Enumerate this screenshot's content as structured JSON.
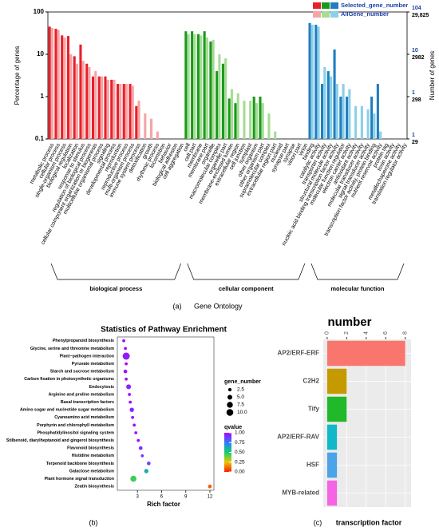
{
  "chart_data": [
    {
      "type": "go_bar",
      "panel": "(a)",
      "caption": "Gene Ontology",
      "ylabel": "Percentage of genes",
      "y2label": "Number of genes",
      "log_scale": true,
      "ylim": [
        0.1,
        100
      ],
      "yticks": [
        0.1,
        1,
        10,
        100
      ],
      "y2labels_selected": [
        "1",
        "1",
        "10",
        "104"
      ],
      "y2labels_all": [
        "29",
        "298",
        "2982",
        "29,825"
      ],
      "series": [
        {
          "name": "Selected_gene_number",
          "colors": [
            "#e8202a",
            "#1a9a1a",
            "#1f7fc0"
          ]
        },
        {
          "name": "AllGene_number",
          "colors": [
            "#f4a6a6",
            "#a6dc96",
            "#8ccfe8"
          ]
        }
      ],
      "groups": [
        {
          "name": "biological process",
          "categories": [
            "metabolic process",
            "cellular process",
            "single-organism process",
            "biological regulation",
            "localization",
            "response to stimulus",
            "regulation of biological process",
            "cellular component organization or biogenesis",
            "multicellular organismal process",
            "signaling",
            "developmental process",
            "reproduction",
            "reproductive process",
            "multi-organism process",
            "immune system process",
            "detoxification",
            "growth",
            "rhythmic process",
            "locomotion",
            "behavior",
            "biological adhesion",
            "cell aggregation"
          ],
          "values": [
            [
              45,
              40,
              28,
              27,
              9,
              17,
              6,
              3,
              3,
              3,
              2.5,
              2,
              2,
              2,
              0.6,
              null,
              null,
              null,
              null,
              null,
              null,
              null
            ],
            [
              42,
              38,
              25,
              10,
              6,
              7,
              5,
              4,
              3,
              2.5,
              2.5,
              2,
              2,
              1.8,
              0.8,
              0.4,
              0.3,
              0.15,
              null,
              null,
              null,
              null
            ]
          ]
        },
        {
          "name": "cellular component",
          "categories": [
            "cell",
            "cell part",
            "membrane",
            "membrane part",
            "organelle",
            "macromolecular complex",
            "organelle part",
            "membrane-enclosed lumen",
            "extracellular region",
            "cell junction",
            "symplast",
            "other organism",
            "other organism part",
            "supramolecular complex",
            "extracellular region part",
            "nucleoid",
            "synapse part",
            "synapse",
            "virion part",
            "virion"
          ],
          "values": [
            [
              35,
              35,
              30,
              35,
              20,
              4,
              6,
              0.9,
              0.7,
              null,
              null,
              1,
              1,
              null,
              null,
              null,
              null,
              null,
              null,
              null
            ],
            [
              30,
              30,
              28,
              25,
              22,
              10,
              8,
              1.5,
              1.2,
              0.8,
              0.8,
              0.7,
              0.7,
              0.4,
              0.15,
              null,
              null,
              null,
              null,
              null
            ]
          ]
        },
        {
          "name": "molecular function",
          "categories": [
            "binding",
            "catalytic activity",
            "transporter activity",
            "structural molecule activity",
            "nucleic acid binding transcription factor activity",
            "molecular function regulator",
            "electron carrier activity",
            "antioxidant activity",
            "molecular transducer activity",
            "signal transducer activity",
            "transcription factor activity, protein binding",
            "nutrient reservoir activity",
            "protein tag",
            "toxin activity",
            "metallochaperone activity",
            "translation regulator activity"
          ],
          "values": [
            [
              55,
              50,
              2,
              4,
              13,
              1,
              1,
              null,
              null,
              null,
              1,
              2,
              null,
              null,
              null,
              null
            ],
            [
              50,
              45,
              5,
              3,
              2,
              2,
              1.5,
              0.6,
              0.6,
              0.5,
              0.4,
              0.15,
              null,
              null,
              null,
              null
            ]
          ]
        }
      ]
    },
    {
      "type": "dot",
      "panel": "(b)",
      "title": "Statistics of Pathway Enrichment",
      "xlabel": "Rich factor",
      "categories": [
        "Phenylpropanoid biosynthesis",
        "Glycine, serine and threonine metabolism",
        "Plant−pathogen interaction",
        "Pyruvate metabolism",
        "Starch and sucrose metabolism",
        "Carbon fixation in photosynthetic organisms",
        "Endocytosis",
        "Arginine and proline metabolism",
        "Basal transcription factors",
        "Amino sugar and nucleotide sugar metabolism",
        "Cyanoamino acid metabolism",
        "Porphyrin and chlorophyll metabolism",
        "Phosphatidylinositol signaling system",
        "Stilbenoid, diarylheptanoid and gingerol biosynthesis",
        "Flavonoid biosynthesis",
        "Histidine metabolism",
        "Terpenoid backbone biosynthesis",
        "Galactose metabolism",
        "Plant hormone signal transduction",
        "Zeatin biosynthesis"
      ],
      "x": [
        1.3,
        1.5,
        1.6,
        1.6,
        1.5,
        1.6,
        1.9,
        2.0,
        2.1,
        2.3,
        2.4,
        2.6,
        2.8,
        3.1,
        3.4,
        3.6,
        4.4,
        4.1,
        2.5,
        12
      ],
      "size": [
        2,
        2,
        11,
        2,
        3,
        2,
        5,
        2,
        2,
        4,
        2,
        2,
        2,
        2,
        3,
        2,
        3,
        4,
        8,
        3
      ],
      "qvalue": [
        0.98,
        0.98,
        0.95,
        0.98,
        0.96,
        0.98,
        0.93,
        0.98,
        0.98,
        0.93,
        0.98,
        0.98,
        0.97,
        0.97,
        0.9,
        0.88,
        0.85,
        0.6,
        0.45,
        0.1
      ],
      "xlim": [
        0.5,
        12.5
      ],
      "xticks": [
        3,
        6,
        9,
        12
      ],
      "size_title": "gene_number",
      "size_ticks": [
        2.5,
        {
          "value": 5,
          "label": "5.0"
        },
        {
          "value": 7.5,
          "label": "7.5"
        },
        {
          "value": 10,
          "label": "10.0"
        }
      ],
      "color_title": "qvalue",
      "color_ticks": [
        {
          "value": 1,
          "label": "1.00"
        },
        {
          "value": 0.75,
          "label": "0.75"
        },
        {
          "value": 0.5,
          "label": "0.50"
        },
        {
          "value": 0.25,
          "label": "0.25"
        },
        {
          "value": 0,
          "label": "0.00"
        }
      ],
      "colorscale": [
        "#ff1a00",
        "#e8c800",
        "#10d070",
        "#2a7cff",
        "#b000ff"
      ]
    },
    {
      "type": "hbar",
      "panel": "(c)",
      "xlabel": "number",
      "ylabel": "transcription factor",
      "categories": [
        "AP2/ERF-ERF",
        "C2H2",
        "Tify",
        "AP2/ERF-RAV",
        "HSF",
        "MYB-related"
      ],
      "values": [
        8,
        2,
        2,
        1,
        1,
        1
      ],
      "colors": [
        "#f8766d",
        "#c49a00",
        "#21b82a",
        "#10b8c8",
        "#4ba3e8",
        "#f564e3"
      ],
      "xlim": [
        -0.4,
        8.6
      ],
      "xticks": [
        0,
        2,
        4,
        6,
        8
      ],
      "grid": true
    }
  ]
}
